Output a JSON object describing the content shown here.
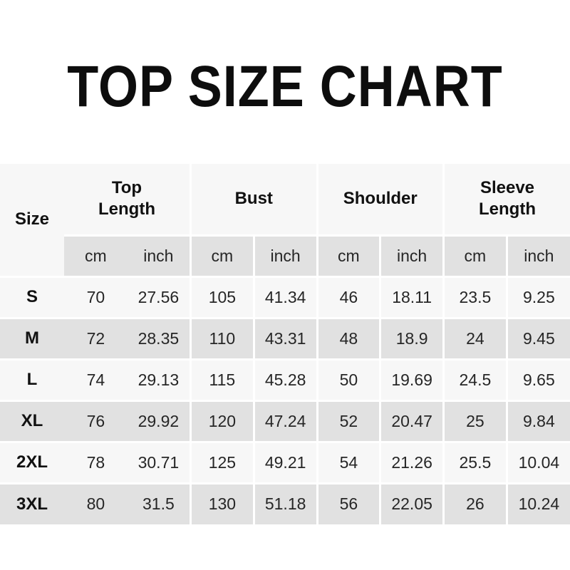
{
  "title": "TOP SIZE CHART",
  "table": {
    "size_header": "Size",
    "groups": [
      {
        "label": "Top Length"
      },
      {
        "label": "Bust"
      },
      {
        "label": "Shoulder"
      },
      {
        "label": "Sleeve Length"
      }
    ],
    "units": [
      "cm",
      "inch",
      "cm",
      "inch",
      "cm",
      "inch",
      "cm",
      "inch"
    ],
    "rows": [
      {
        "size": "S",
        "values": [
          "70",
          "27.56",
          "105",
          "41.34",
          "46",
          "18.11",
          "23.5",
          "9.25"
        ]
      },
      {
        "size": "M",
        "values": [
          "72",
          "28.35",
          "110",
          "43.31",
          "48",
          "18.9",
          "24",
          "9.45"
        ]
      },
      {
        "size": "L",
        "values": [
          "74",
          "29.13",
          "115",
          "45.28",
          "50",
          "19.69",
          "24.5",
          "9.65"
        ]
      },
      {
        "size": "XL",
        "values": [
          "76",
          "29.92",
          "120",
          "47.24",
          "52",
          "20.47",
          "25",
          "9.84"
        ]
      },
      {
        "size": "2XL",
        "values": [
          "78",
          "30.71",
          "125",
          "49.21",
          "54",
          "21.26",
          "25.5",
          "10.04"
        ]
      },
      {
        "size": "3XL",
        "values": [
          "80",
          "31.5",
          "130",
          "51.18",
          "56",
          "22.05",
          "26",
          "10.24"
        ]
      }
    ]
  },
  "colors": {
    "row_light": "#f7f7f7",
    "row_gray": "#e1e1e1",
    "grid_line": "#ffffff",
    "text_dark": "#111111",
    "text_num": "#262626"
  }
}
